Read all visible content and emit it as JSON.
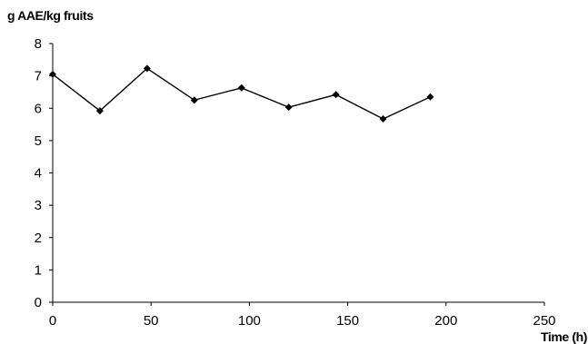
{
  "chart_data": {
    "type": "line",
    "title": "",
    "xlabel": "Time (h)",
    "ylabel": "g AAE/kg fruits",
    "xlim": [
      0,
      250
    ],
    "ylim": [
      0,
      8
    ],
    "x_ticks": [
      0,
      50,
      100,
      150,
      200,
      250
    ],
    "y_ticks": [
      0,
      1,
      2,
      3,
      4,
      5,
      6,
      7,
      8
    ],
    "grid": false,
    "legend": "none",
    "series": [
      {
        "color": "#000000",
        "marker": "diamond",
        "x": [
          0,
          24,
          48,
          72,
          96,
          120,
          144,
          168,
          192
        ],
        "y": [
          7.05,
          5.92,
          7.23,
          6.25,
          6.63,
          6.03,
          6.42,
          5.67,
          6.35
        ]
      }
    ]
  }
}
